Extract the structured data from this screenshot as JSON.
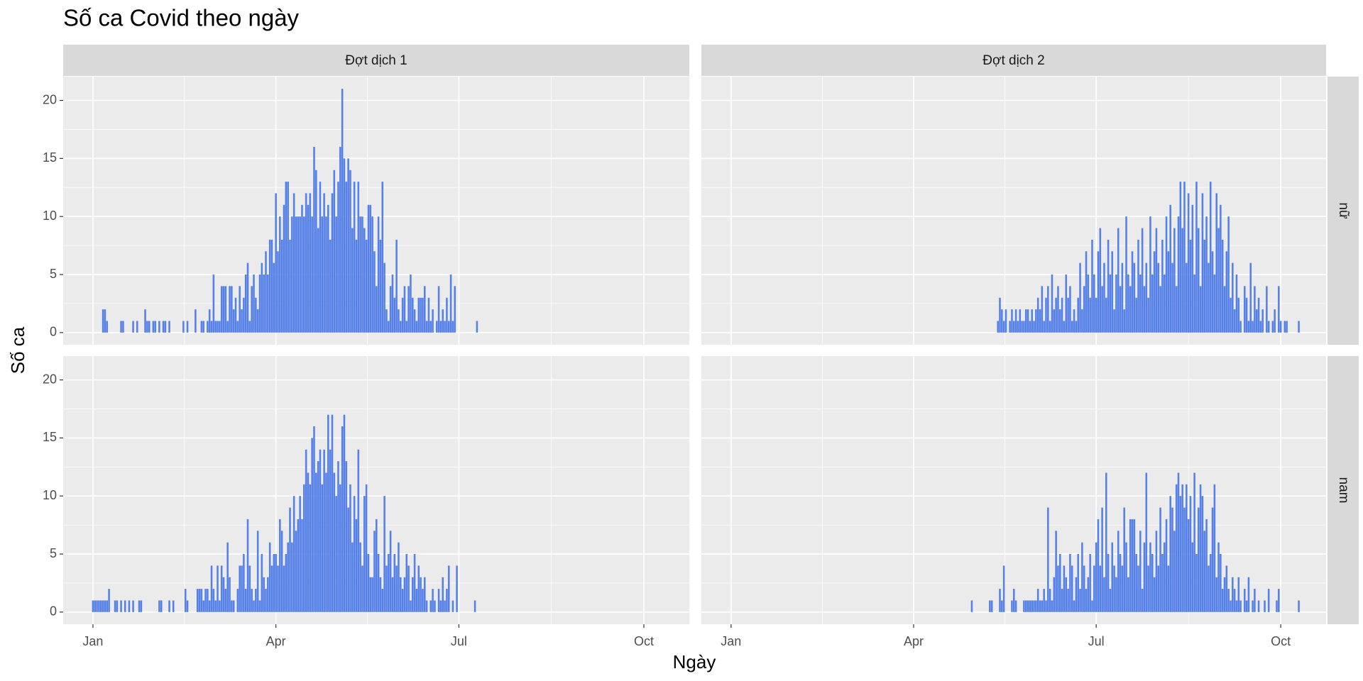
{
  "chart_data": {
    "type": "bar",
    "title": "Số ca Covid theo ngày",
    "x_label": "Ngày",
    "y_label": "Số ca",
    "columns": [
      "Đợt dịch 1",
      "Đợt dịch 2"
    ],
    "rows": [
      "nữ",
      "nam"
    ],
    "color": "#5580e8",
    "grid": true,
    "xlim": [
      -14.8,
      296.6
    ],
    "xticks": [
      {
        "value": 0,
        "label": "Jan"
      },
      {
        "value": 91,
        "label": "Apr"
      },
      {
        "value": 182,
        "label": "Jul"
      },
      {
        "value": 274,
        "label": "Oct"
      }
    ],
    "ylim": [
      -1.05,
      22.05
    ],
    "yticks": [
      0,
      5,
      10,
      15,
      20
    ],
    "panels": [
      [
        {
          "x": [
            5,
            6,
            7,
            14,
            15,
            20,
            22,
            26,
            27,
            28,
            30,
            31,
            33,
            35,
            36,
            38,
            45,
            47,
            51,
            54,
            55,
            56,
            57,
            58,
            59,
            60,
            61,
            62,
            63,
            64,
            65,
            66,
            67,
            68,
            69,
            70,
            71,
            72,
            73,
            74,
            75,
            76,
            77,
            78,
            79,
            80,
            81,
            82,
            83,
            84,
            85,
            86,
            87,
            88,
            89,
            90,
            91,
            92,
            93,
            94,
            95,
            96,
            97,
            98,
            99,
            100,
            101,
            102,
            103,
            104,
            105,
            106,
            107,
            108,
            109,
            110,
            111,
            112,
            113,
            114,
            115,
            116,
            117,
            118,
            119,
            120,
            121,
            122,
            123,
            124,
            125,
            126,
            127,
            128,
            129,
            130,
            131,
            132,
            133,
            134,
            135,
            136,
            137,
            138,
            139,
            140,
            141,
            142,
            143,
            144,
            145,
            146,
            147,
            148,
            149,
            150,
            151,
            152,
            153,
            154,
            155,
            156,
            157,
            158,
            159,
            160,
            161,
            162,
            163,
            164,
            165,
            166,
            167,
            168,
            169,
            170,
            171,
            172,
            173,
            174,
            175,
            176,
            177,
            178,
            179,
            180,
            181,
            191
          ],
          "values": [
            2,
            2,
            1,
            1,
            1,
            1,
            1,
            2,
            1,
            1,
            1,
            1,
            1,
            1,
            1,
            1,
            1,
            1,
            2,
            1,
            1,
            0,
            1,
            2,
            1,
            5,
            1,
            1,
            1,
            4,
            4,
            4,
            1,
            4,
            4,
            2,
            3,
            1,
            4,
            2,
            3,
            5,
            6,
            1,
            4,
            5,
            3,
            2,
            5,
            6,
            5,
            7,
            5,
            8,
            8,
            6,
            12,
            7,
            10,
            8,
            11,
            13,
            13,
            8,
            10,
            12,
            10,
            10,
            10,
            11,
            10,
            12,
            11,
            12,
            10,
            16,
            14,
            9,
            13,
            10,
            12,
            10,
            11,
            8,
            12,
            14,
            10,
            13,
            16,
            21,
            15,
            13,
            15,
            14,
            9,
            13,
            8,
            13,
            10,
            10,
            9,
            8,
            11,
            11,
            10,
            7,
            4,
            10,
            8,
            13,
            6,
            2,
            1,
            4,
            5,
            3,
            8,
            2,
            1,
            3,
            4,
            1,
            4,
            5,
            3,
            2,
            1,
            3,
            3,
            3,
            4,
            1,
            3,
            1,
            2,
            0,
            1,
            4,
            1,
            2,
            1,
            3,
            1,
            5,
            1,
            4,
            0,
            1
          ]
        },
        {
          "x": [
            133,
            134,
            135,
            136,
            137,
            138,
            139,
            140,
            141,
            142,
            143,
            144,
            145,
            146,
            147,
            148,
            149,
            150,
            151,
            152,
            153,
            154,
            155,
            156,
            157,
            158,
            159,
            160,
            161,
            162,
            163,
            164,
            165,
            166,
            167,
            168,
            169,
            170,
            171,
            172,
            173,
            174,
            175,
            176,
            177,
            178,
            179,
            180,
            181,
            182,
            183,
            184,
            185,
            186,
            187,
            188,
            189,
            190,
            191,
            192,
            193,
            194,
            195,
            196,
            197,
            198,
            199,
            200,
            201,
            202,
            203,
            204,
            205,
            206,
            207,
            208,
            209,
            210,
            211,
            212,
            213,
            214,
            215,
            216,
            217,
            218,
            219,
            220,
            221,
            222,
            223,
            224,
            225,
            226,
            227,
            228,
            229,
            230,
            231,
            232,
            233,
            234,
            235,
            236,
            237,
            238,
            239,
            240,
            241,
            242,
            243,
            244,
            245,
            246,
            247,
            248,
            249,
            250,
            251,
            252,
            253,
            254,
            255,
            256,
            257,
            258,
            259,
            260,
            261,
            262,
            263,
            264,
            265,
            266,
            267,
            268,
            269,
            270,
            271,
            272,
            273,
            274,
            275,
            276,
            277,
            283
          ],
          "values": [
            1,
            3,
            2,
            1,
            2,
            0,
            1,
            2,
            1,
            2,
            1,
            2,
            1,
            1,
            2,
            2,
            1,
            2,
            1,
            2,
            3,
            2,
            4,
            1,
            3,
            4,
            1,
            5,
            2,
            3,
            4,
            2,
            3,
            1,
            5,
            3,
            4,
            1,
            2,
            1,
            3,
            6,
            2,
            4,
            7,
            5,
            3,
            8,
            5,
            3,
            7,
            9,
            4,
            6,
            3,
            8,
            5,
            7,
            2,
            5,
            9,
            4,
            6,
            2,
            10,
            5,
            4,
            7,
            6,
            3,
            8,
            5,
            9,
            4,
            6,
            3,
            10,
            5,
            7,
            9,
            6,
            4,
            8,
            5,
            10,
            7,
            11,
            6,
            9,
            4,
            10,
            13,
            9,
            13,
            6,
            12,
            8,
            11,
            5,
            13,
            9,
            4,
            12,
            8,
            10,
            6,
            13,
            7,
            5,
            12,
            9,
            11,
            8,
            4,
            7,
            10,
            3,
            6,
            2,
            5,
            3,
            1,
            0,
            4,
            3,
            1,
            6,
            1,
            4,
            2,
            3,
            1,
            2,
            0,
            4,
            1,
            0,
            1,
            2,
            0,
            4,
            1,
            0,
            1,
            1,
            1
          ]
        }
      ],
      [
        {
          "x": [
            0,
            1,
            2,
            3,
            4,
            5,
            6,
            7,
            8,
            11,
            12,
            14,
            16,
            18,
            20,
            23,
            24,
            33,
            34,
            38,
            40,
            46,
            47,
            52,
            53,
            54,
            55,
            56,
            57,
            58,
            59,
            60,
            61,
            62,
            63,
            64,
            65,
            66,
            67,
            68,
            69,
            70,
            71,
            72,
            73,
            74,
            75,
            76,
            77,
            78,
            79,
            80,
            81,
            82,
            83,
            84,
            85,
            86,
            87,
            88,
            89,
            90,
            91,
            92,
            93,
            94,
            95,
            96,
            97,
            98,
            99,
            100,
            101,
            102,
            103,
            104,
            105,
            106,
            107,
            108,
            109,
            110,
            111,
            112,
            113,
            114,
            115,
            116,
            117,
            118,
            119,
            120,
            121,
            122,
            123,
            124,
            125,
            126,
            127,
            128,
            129,
            130,
            131,
            132,
            133,
            134,
            135,
            136,
            137,
            138,
            139,
            140,
            141,
            142,
            143,
            144,
            145,
            146,
            147,
            148,
            149,
            150,
            151,
            152,
            153,
            154,
            155,
            156,
            157,
            158,
            159,
            160,
            161,
            162,
            163,
            164,
            165,
            166,
            167,
            168,
            169,
            170,
            171,
            172,
            173,
            174,
            175,
            176,
            177,
            178,
            179,
            180,
            181,
            190
          ],
          "values": [
            1,
            1,
            1,
            1,
            1,
            1,
            1,
            1,
            2,
            1,
            1,
            1,
            1,
            1,
            1,
            1,
            1,
            1,
            1,
            1,
            1,
            2,
            1,
            2,
            2,
            2,
            1,
            2,
            2,
            1,
            4,
            2,
            1,
            4,
            1,
            4,
            3,
            2,
            6,
            3,
            1,
            1,
            0,
            2,
            4,
            4,
            5,
            2,
            8,
            4,
            2,
            1,
            2,
            7,
            1,
            5,
            3,
            2,
            3,
            6,
            4,
            5,
            5,
            4,
            8,
            7,
            4,
            5,
            6,
            9,
            6,
            10,
            7,
            8,
            10,
            8,
            11,
            14,
            12,
            11,
            15,
            16,
            12,
            13,
            14,
            11,
            14,
            12,
            17,
            14,
            17,
            12,
            10,
            13,
            11,
            16,
            17,
            13,
            9,
            11,
            6,
            10,
            8,
            14,
            6,
            4,
            10,
            11,
            5,
            3,
            3,
            7,
            8,
            5,
            3,
            2,
            10,
            4,
            5,
            7,
            3,
            5,
            4,
            6,
            3,
            2,
            3,
            5,
            4,
            1,
            3,
            5,
            2,
            4,
            3,
            2,
            3,
            1,
            0,
            1,
            2,
            1,
            0,
            2,
            1,
            3,
            1,
            2,
            4,
            0,
            1,
            0,
            4,
            1
          ]
        },
        {
          "x": [
            120,
            129,
            130,
            134,
            135,
            136,
            140,
            141,
            142,
            146,
            147,
            148,
            149,
            150,
            151,
            152,
            153,
            154,
            155,
            156,
            157,
            158,
            159,
            160,
            161,
            162,
            163,
            164,
            165,
            166,
            167,
            168,
            169,
            170,
            171,
            172,
            173,
            174,
            175,
            176,
            177,
            178,
            179,
            180,
            181,
            182,
            183,
            184,
            185,
            186,
            187,
            188,
            189,
            190,
            191,
            192,
            193,
            194,
            195,
            196,
            197,
            198,
            199,
            200,
            201,
            202,
            203,
            204,
            205,
            206,
            207,
            208,
            209,
            210,
            211,
            212,
            213,
            214,
            215,
            216,
            217,
            218,
            219,
            220,
            221,
            222,
            223,
            224,
            225,
            226,
            227,
            228,
            229,
            230,
            231,
            232,
            233,
            234,
            235,
            236,
            237,
            238,
            239,
            240,
            241,
            242,
            243,
            244,
            245,
            246,
            247,
            248,
            249,
            250,
            251,
            252,
            253,
            254,
            255,
            256,
            257,
            258,
            259,
            260,
            261,
            262,
            263,
            264,
            265,
            266,
            267,
            268,
            269,
            270,
            271,
            272,
            273,
            274,
            275,
            283
          ],
          "values": [
            1,
            1,
            1,
            2,
            1,
            4,
            1,
            2,
            1,
            1,
            1,
            1,
            1,
            1,
            1,
            1,
            2,
            1,
            1,
            2,
            1,
            9,
            2,
            1,
            3,
            7,
            4,
            5,
            2,
            4,
            3,
            2,
            5,
            4,
            1,
            3,
            5,
            2,
            6,
            4,
            2,
            3,
            5,
            1,
            4,
            6,
            8,
            4,
            9,
            3,
            12,
            5,
            2,
            6,
            4,
            3,
            7,
            5,
            4,
            9,
            6,
            3,
            8,
            8,
            8,
            5,
            4,
            7,
            2,
            6,
            12,
            4,
            6,
            5,
            3,
            7,
            4,
            9,
            5,
            6,
            8,
            4,
            10,
            9,
            7,
            11,
            12,
            10,
            11,
            9,
            11,
            8,
            10,
            6,
            12,
            5,
            9,
            11,
            10,
            7,
            8,
            4,
            5,
            9,
            11,
            3,
            6,
            5,
            2,
            3,
            4,
            2,
            1,
            3,
            2,
            1,
            3,
            1,
            0,
            2,
            1,
            3,
            0,
            1,
            2,
            0,
            1,
            0,
            0,
            1,
            0,
            2,
            0,
            0,
            0,
            1,
            2,
            0,
            0,
            1
          ]
        }
      ]
    ]
  }
}
